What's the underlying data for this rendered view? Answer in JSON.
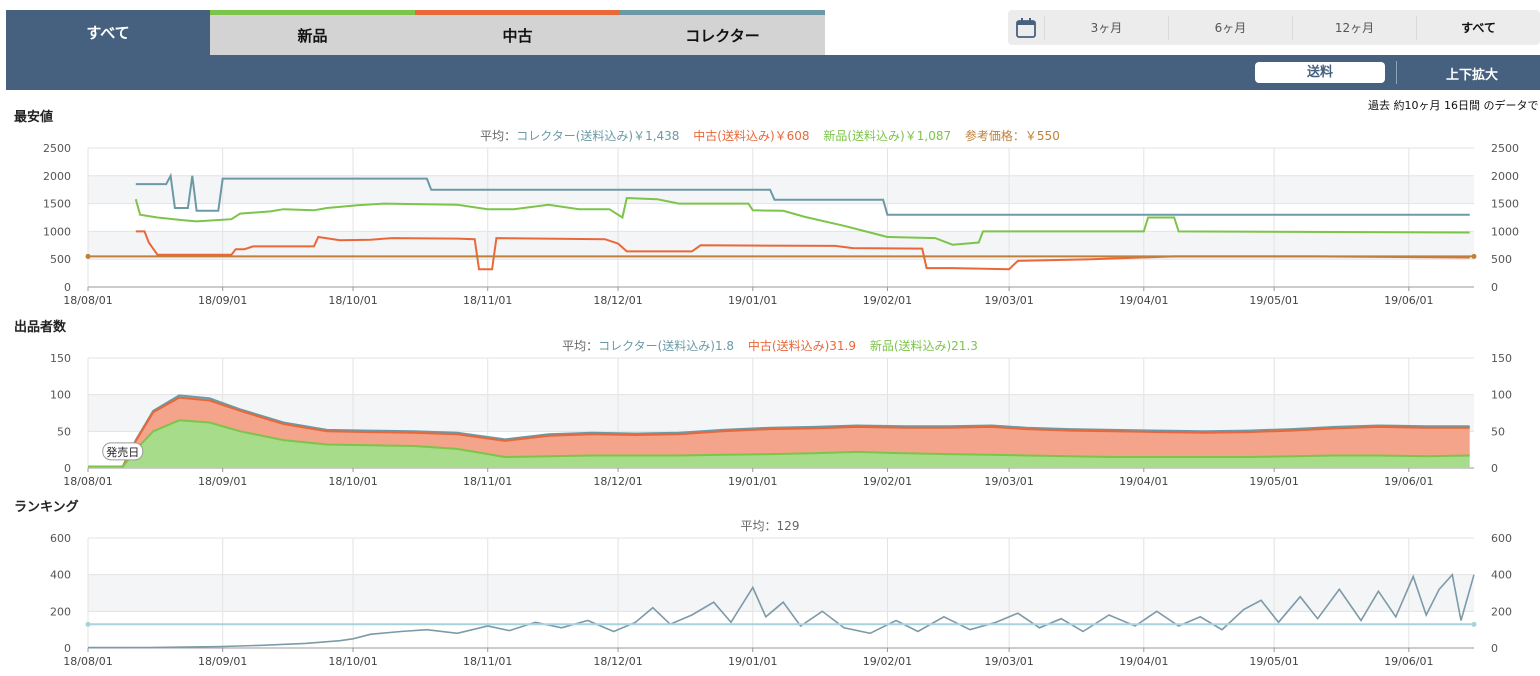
{
  "tabs": [
    {
      "label": "すべて",
      "active": true
    },
    {
      "label": "新品",
      "color": "#7cc44a"
    },
    {
      "label": "中古",
      "color": "#e8683a"
    },
    {
      "label": "コレクター",
      "color": "#6b9aa6"
    }
  ],
  "range": {
    "icon": "calendar-icon",
    "options": [
      "3ヶ月",
      "6ヶ月",
      "12ヶ月",
      "すべて"
    ],
    "selected": "すべて"
  },
  "toolbar": {
    "shipping_label": "送料",
    "zoom_label": "上下拡大"
  },
  "data_note": "過去 約10ヶ月 16日間 のデータで",
  "colors": {
    "collector": "#6b9aa6",
    "used": "#e8683a",
    "new": "#7cc44a",
    "reference": "#c0803a",
    "header": "#45617f"
  },
  "price": {
    "title": "最安値",
    "legend": {
      "prefix": "平均：",
      "collector": "コレクター(送料込み)￥1,438",
      "used": "中古(送料込み)￥608",
      "new": "新品(送料込み)￥1,087",
      "reference": "参考価格：￥550"
    }
  },
  "sellers": {
    "title": "出品者数",
    "legend": {
      "prefix": "平均：",
      "collector": "コレクター(送料込み)1.8",
      "used": "中古(送料込み)31.9",
      "new": "新品(送料込み)21.3"
    },
    "release_label": "発売日"
  },
  "ranking": {
    "title": "ランキング",
    "legend": {
      "prefix": "平均：129"
    }
  },
  "chart_data": [
    {
      "type": "line",
      "title": "最安値",
      "x_ticks": [
        "18/08/01",
        "18/09/01",
        "18/10/01",
        "18/11/01",
        "18/12/01",
        "19/01/01",
        "19/02/01",
        "19/03/01",
        "19/04/01",
        "19/05/01",
        "19/06/01"
      ],
      "x_range": [
        "2018-08-01",
        "2019-06-16"
      ],
      "ylim": [
        0,
        2500
      ],
      "y_ticks": [
        0,
        500,
        1000,
        1500,
        2000,
        2500
      ],
      "grid": true,
      "series": [
        {
          "name": "コレクター(送料込み)",
          "points": [
            [
              "2018-08-12",
              1850
            ],
            [
              "2018-08-19",
              1850
            ],
            [
              "2018-08-20",
              2000
            ],
            [
              "2018-08-21",
              1420
            ],
            [
              "2018-08-24",
              1420
            ],
            [
              "2018-08-25",
              2000
            ],
            [
              "2018-08-26",
              1370
            ],
            [
              "2018-08-31",
              1370
            ],
            [
              "2018-09-01",
              1950
            ],
            [
              "2018-10-18",
              1950
            ],
            [
              "2018-10-19",
              1750
            ],
            [
              "2019-01-05",
              1750
            ],
            [
              "2019-01-06",
              1570
            ],
            [
              "2019-01-31",
              1570
            ],
            [
              "2019-02-01",
              1300
            ],
            [
              "2019-06-15",
              1300
            ]
          ]
        },
        {
          "name": "中古(送料込み)",
          "points": [
            [
              "2018-08-12",
              1000
            ],
            [
              "2018-08-14",
              1000
            ],
            [
              "2018-08-15",
              800
            ],
            [
              "2018-08-17",
              580
            ],
            [
              "2018-09-03",
              580
            ],
            [
              "2018-09-04",
              680
            ],
            [
              "2018-09-06",
              680
            ],
            [
              "2018-09-08",
              730
            ],
            [
              "2018-09-22",
              730
            ],
            [
              "2018-09-23",
              900
            ],
            [
              "2018-09-28",
              840
            ],
            [
              "2018-10-05",
              850
            ],
            [
              "2018-10-10",
              880
            ],
            [
              "2018-10-25",
              870
            ],
            [
              "2018-10-29",
              860
            ],
            [
              "2018-10-30",
              320
            ],
            [
              "2018-11-02",
              320
            ],
            [
              "2018-11-03",
              880
            ],
            [
              "2018-11-28",
              860
            ],
            [
              "2018-12-01",
              780
            ],
            [
              "2018-12-03",
              640
            ],
            [
              "2018-12-18",
              640
            ],
            [
              "2018-12-20",
              750
            ],
            [
              "2019-01-20",
              740
            ],
            [
              "2019-01-24",
              700
            ],
            [
              "2019-02-09",
              690
            ],
            [
              "2019-02-10",
              340
            ],
            [
              "2019-02-16",
              340
            ],
            [
              "2019-03-01",
              320
            ],
            [
              "2019-03-03",
              470
            ],
            [
              "2019-03-20",
              500
            ],
            [
              "2019-04-08",
              550
            ],
            [
              "2019-05-10",
              550
            ],
            [
              "2019-06-15",
              530
            ]
          ]
        },
        {
          "name": "新品(送料込み)",
          "points": [
            [
              "2018-08-12",
              1580
            ],
            [
              "2018-08-13",
              1300
            ],
            [
              "2018-08-17",
              1250
            ],
            [
              "2018-08-23",
              1200
            ],
            [
              "2018-08-26",
              1180
            ],
            [
              "2018-09-03",
              1220
            ],
            [
              "2018-09-05",
              1320
            ],
            [
              "2018-09-12",
              1360
            ],
            [
              "2018-09-15",
              1400
            ],
            [
              "2018-09-22",
              1380
            ],
            [
              "2018-09-25",
              1420
            ],
            [
              "2018-10-02",
              1470
            ],
            [
              "2018-10-08",
              1500
            ],
            [
              "2018-10-25",
              1480
            ],
            [
              "2018-11-01",
              1400
            ],
            [
              "2018-11-07",
              1400
            ],
            [
              "2018-11-15",
              1480
            ],
            [
              "2018-11-22",
              1400
            ],
            [
              "2018-11-29",
              1400
            ],
            [
              "2018-12-02",
              1250
            ],
            [
              "2018-12-03",
              1600
            ],
            [
              "2018-12-10",
              1580
            ],
            [
              "2018-12-15",
              1500
            ],
            [
              "2018-12-31",
              1500
            ],
            [
              "2019-01-01",
              1380
            ],
            [
              "2019-01-08",
              1370
            ],
            [
              "2019-01-13",
              1260
            ],
            [
              "2019-01-22",
              1100
            ],
            [
              "2019-01-27",
              1000
            ],
            [
              "2019-02-01",
              900
            ],
            [
              "2019-02-12",
              880
            ],
            [
              "2019-02-16",
              760
            ],
            [
              "2019-02-22",
              800
            ],
            [
              "2019-02-23",
              1000
            ],
            [
              "2019-03-06",
              1000
            ],
            [
              "2019-04-01",
              1000
            ],
            [
              "2019-04-02",
              1250
            ],
            [
              "2019-04-08",
              1250
            ],
            [
              "2019-04-09",
              1000
            ],
            [
              "2019-06-15",
              980
            ]
          ]
        },
        {
          "name": "参考価格",
          "points": [
            [
              "2018-08-01",
              550
            ],
            [
              "2019-06-16",
              550
            ]
          ]
        }
      ]
    },
    {
      "type": "area",
      "title": "出品者数",
      "x_ticks": [
        "18/08/01",
        "18/09/01",
        "18/10/01",
        "18/11/01",
        "18/12/01",
        "19/01/01",
        "19/02/01",
        "19/03/01",
        "19/04/01",
        "19/05/01",
        "19/06/01"
      ],
      "x_range": [
        "2018-08-01",
        "2019-06-16"
      ],
      "ylim": [
        0,
        150
      ],
      "y_ticks": [
        0,
        50,
        100,
        150
      ],
      "stacked": true,
      "annotations": [
        {
          "text": "発売日",
          "x": "2018-08-09"
        }
      ],
      "x": [
        "2018-08-01",
        "2018-08-09",
        "2018-08-12",
        "2018-08-16",
        "2018-08-22",
        "2018-08-29",
        "2018-09-05",
        "2018-09-15",
        "2018-09-25",
        "2018-10-05",
        "2018-10-15",
        "2018-10-25",
        "2018-11-05",
        "2018-11-15",
        "2018-11-25",
        "2018-12-05",
        "2018-12-15",
        "2018-12-25",
        "2019-01-05",
        "2019-01-15",
        "2019-01-25",
        "2019-02-05",
        "2019-02-15",
        "2019-02-25",
        "2019-03-05",
        "2019-03-15",
        "2019-03-25",
        "2019-04-05",
        "2019-04-15",
        "2019-04-25",
        "2019-05-05",
        "2019-05-15",
        "2019-05-25",
        "2019-06-05",
        "2019-06-15"
      ],
      "series": [
        {
          "name": "新品(送料込み)",
          "values": [
            2,
            2,
            25,
            50,
            65,
            62,
            50,
            38,
            32,
            31,
            30,
            26,
            15,
            16,
            17,
            17,
            17,
            18,
            19,
            20,
            22,
            20,
            19,
            18,
            17,
            16,
            15,
            15,
            15,
            15,
            16,
            17,
            17,
            16,
            17
          ]
        },
        {
          "name": "中古(送料込み)",
          "values": [
            0,
            0,
            12,
            26,
            31,
            30,
            28,
            22,
            18,
            18,
            18,
            20,
            22,
            28,
            29,
            28,
            29,
            32,
            34,
            34,
            34,
            35,
            36,
            38,
            36,
            35,
            35,
            34,
            33,
            34,
            35,
            37,
            39,
            39,
            38
          ]
        },
        {
          "name": "コレクター(送料込み)",
          "values": [
            0,
            0,
            1,
            2,
            3,
            3,
            2,
            2,
            2,
            2,
            2,
            2,
            2,
            2,
            2,
            2,
            2,
            2,
            2,
            2,
            2,
            2,
            2,
            2,
            2,
            2,
            2,
            2,
            2,
            2,
            2,
            2,
            2,
            2,
            2
          ]
        }
      ]
    },
    {
      "type": "line",
      "title": "ランキング",
      "x_ticks": [
        "18/08/01",
        "18/09/01",
        "18/10/01",
        "18/11/01",
        "18/12/01",
        "19/01/01",
        "19/02/01",
        "19/03/01",
        "19/04/01",
        "19/05/01",
        "19/06/01"
      ],
      "x_range": [
        "2018-08-01",
        "2019-06-16"
      ],
      "ylim": [
        0,
        600
      ],
      "y_ticks": [
        0,
        200,
        400,
        600
      ],
      "series": [
        {
          "name": "ランキング",
          "points": [
            [
              "2018-08-01",
              2
            ],
            [
              "2018-08-15",
              3
            ],
            [
              "2018-09-01",
              8
            ],
            [
              "2018-09-10",
              15
            ],
            [
              "2018-09-20",
              25
            ],
            [
              "2018-09-28",
              40
            ],
            [
              "2018-10-01",
              50
            ],
            [
              "2018-10-05",
              75
            ],
            [
              "2018-10-12",
              90
            ],
            [
              "2018-10-18",
              100
            ],
            [
              "2018-10-25",
              80
            ],
            [
              "2018-11-01",
              120
            ],
            [
              "2018-11-06",
              95
            ],
            [
              "2018-11-12",
              140
            ],
            [
              "2018-11-18",
              110
            ],
            [
              "2018-11-24",
              150
            ],
            [
              "2018-11-30",
              90
            ],
            [
              "2018-12-05",
              140
            ],
            [
              "2018-12-09",
              220
            ],
            [
              "2018-12-13",
              130
            ],
            [
              "2018-12-18",
              180
            ],
            [
              "2018-12-23",
              250
            ],
            [
              "2018-12-27",
              140
            ],
            [
              "2019-01-01",
              330
            ],
            [
              "2019-01-04",
              170
            ],
            [
              "2019-01-08",
              250
            ],
            [
              "2019-01-12",
              120
            ],
            [
              "2019-01-17",
              200
            ],
            [
              "2019-01-22",
              110
            ],
            [
              "2019-01-28",
              80
            ],
            [
              "2019-02-03",
              150
            ],
            [
              "2019-02-08",
              90
            ],
            [
              "2019-02-14",
              170
            ],
            [
              "2019-02-20",
              100
            ],
            [
              "2019-02-26",
              140
            ],
            [
              "2019-03-03",
              190
            ],
            [
              "2019-03-08",
              110
            ],
            [
              "2019-03-13",
              160
            ],
            [
              "2019-03-18",
              90
            ],
            [
              "2019-03-24",
              180
            ],
            [
              "2019-03-30",
              120
            ],
            [
              "2019-04-04",
              200
            ],
            [
              "2019-04-09",
              120
            ],
            [
              "2019-04-14",
              170
            ],
            [
              "2019-04-19",
              100
            ],
            [
              "2019-04-24",
              210
            ],
            [
              "2019-04-28",
              260
            ],
            [
              "2019-05-02",
              140
            ],
            [
              "2019-05-07",
              280
            ],
            [
              "2019-05-11",
              160
            ],
            [
              "2019-05-16",
              320
            ],
            [
              "2019-05-21",
              150
            ],
            [
              "2019-05-25",
              310
            ],
            [
              "2019-05-29",
              170
            ],
            [
              "2019-06-02",
              390
            ],
            [
              "2019-06-05",
              180
            ],
            [
              "2019-06-08",
              320
            ],
            [
              "2019-06-11",
              400
            ],
            [
              "2019-06-13",
              150
            ],
            [
              "2019-06-16",
              400
            ]
          ]
        },
        {
          "name": "平均",
          "points": [
            [
              "2018-08-01",
              129
            ],
            [
              "2019-06-16",
              129
            ]
          ]
        }
      ]
    }
  ]
}
